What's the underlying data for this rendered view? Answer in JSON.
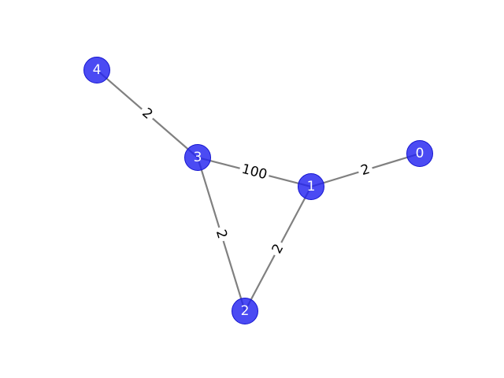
{
  "graph": {
    "colors": {
      "node_fill": "#2323F0",
      "node_edge": "#1515D0",
      "edge": "#808080",
      "edge_label_bg": "#ffffff",
      "node_label": "#ffffff",
      "edge_label": "#000000"
    },
    "nodes": [
      {
        "id": "0",
        "label": "0"
      },
      {
        "id": "1",
        "label": "1"
      },
      {
        "id": "2",
        "label": "2"
      },
      {
        "id": "3",
        "label": "3"
      },
      {
        "id": "4",
        "label": "4"
      }
    ],
    "edges": [
      {
        "source": "4",
        "target": "3",
        "weight": "2"
      },
      {
        "source": "3",
        "target": "1",
        "weight": "100"
      },
      {
        "source": "1",
        "target": "0",
        "weight": "2"
      },
      {
        "source": "3",
        "target": "2",
        "weight": "2"
      },
      {
        "source": "1",
        "target": "2",
        "weight": "2"
      }
    ]
  }
}
